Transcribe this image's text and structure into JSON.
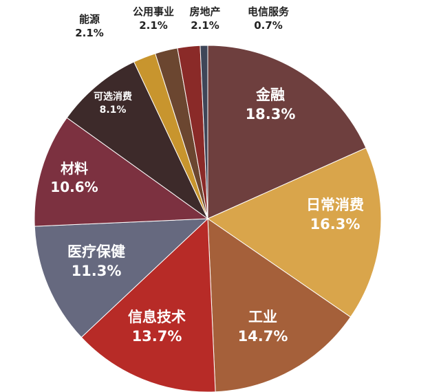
{
  "chart_data": {
    "type": "pie",
    "title": "",
    "slices": [
      {
        "name": "金融",
        "value": 18.3,
        "label": "18.3%",
        "color": "#6e3f3e"
      },
      {
        "name": "日常消费",
        "value": 16.3,
        "label": "16.3%",
        "color": "#d9a54b"
      },
      {
        "name": "工业",
        "value": 14.7,
        "label": "14.7%",
        "color": "#a5603a"
      },
      {
        "name": "信息技术",
        "value": 13.7,
        "label": "13.7%",
        "color": "#b72b27"
      },
      {
        "name": "医疗保健",
        "value": 11.3,
        "label": "11.3%",
        "color": "#66697f"
      },
      {
        "name": "材料",
        "value": 10.6,
        "label": "10.6%",
        "color": "#7c3140"
      },
      {
        "name": "可选消费",
        "value": 8.1,
        "label": "8.1%",
        "color": "#3d2a2a"
      },
      {
        "name": "能源",
        "value": 2.1,
        "label": "2.1%",
        "color": "#c8952e"
      },
      {
        "name": "公用事业",
        "value": 2.1,
        "label": "2.1%",
        "color": "#6b4630"
      },
      {
        "name": "房地产",
        "value": 2.1,
        "label": "2.1%",
        "color": "#8a2a28"
      },
      {
        "name": "电信服务",
        "value": 0.7,
        "label": "0.7%",
        "color": "#3f4658"
      }
    ]
  }
}
